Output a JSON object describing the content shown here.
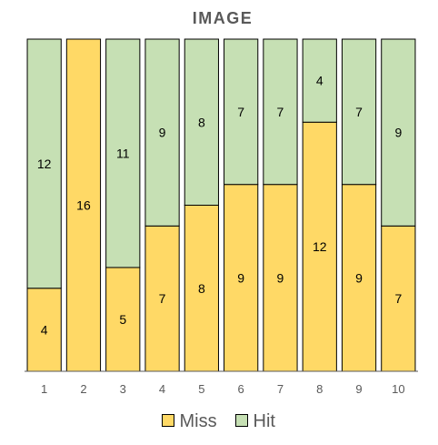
{
  "chart_data": {
    "type": "bar",
    "stacked": true,
    "title": "IMAGE",
    "xlabel": "",
    "ylabel": "",
    "categories": [
      "1",
      "2",
      "3",
      "4",
      "5",
      "6",
      "7",
      "8",
      "9",
      "10"
    ],
    "series": [
      {
        "name": "Miss",
        "color": "#FFD966",
        "values": [
          4,
          16,
          5,
          7,
          8,
          9,
          9,
          12,
          9,
          7
        ]
      },
      {
        "name": "Hit",
        "color": "#C6E0B4",
        "values": [
          12,
          0,
          11,
          9,
          8,
          7,
          7,
          4,
          7,
          9
        ]
      }
    ],
    "ylim": [
      0,
      16
    ],
    "y_axis_visible": false,
    "grid": false,
    "data_labels": true,
    "legend": {
      "position": "bottom"
    }
  }
}
